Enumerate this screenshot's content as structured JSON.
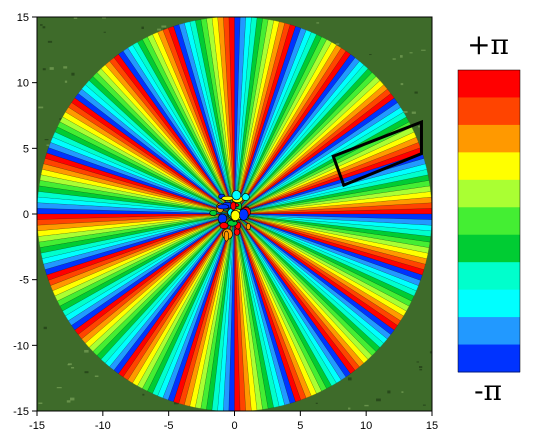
{
  "chart_data": {
    "type": "heatmap",
    "title": "",
    "xlabel": "",
    "ylabel": "",
    "xlim": [
      -15,
      15
    ],
    "ylim": [
      -15,
      15
    ],
    "x_ticks": [
      "-15",
      "-10",
      "-5",
      "0",
      "5",
      "10",
      "15"
    ],
    "y_ticks": [
      "15",
      "10",
      "5",
      "0",
      "-5",
      "-10",
      "-15"
    ],
    "field": "phase",
    "sectors": 20,
    "domain_radius": 15,
    "colorbar": {
      "max_label": "+π",
      "min_label": "-π",
      "levels": [
        "#ff0000",
        "#ff4400",
        "#ff9900",
        "#ffff00",
        "#aaff33",
        "#44ee33",
        "#00cc33",
        "#00ffcc",
        "#00ffff",
        "#2299ff",
        "#0033ff"
      ]
    },
    "annotation": {
      "shape": "rectangle",
      "corners": [
        [
          7.5,
          4.4
        ],
        [
          14.2,
          7.0
        ],
        [
          14.2,
          4.6
        ],
        [
          8.3,
          2.2
        ]
      ]
    },
    "grain_color": "#3e6b2a"
  }
}
